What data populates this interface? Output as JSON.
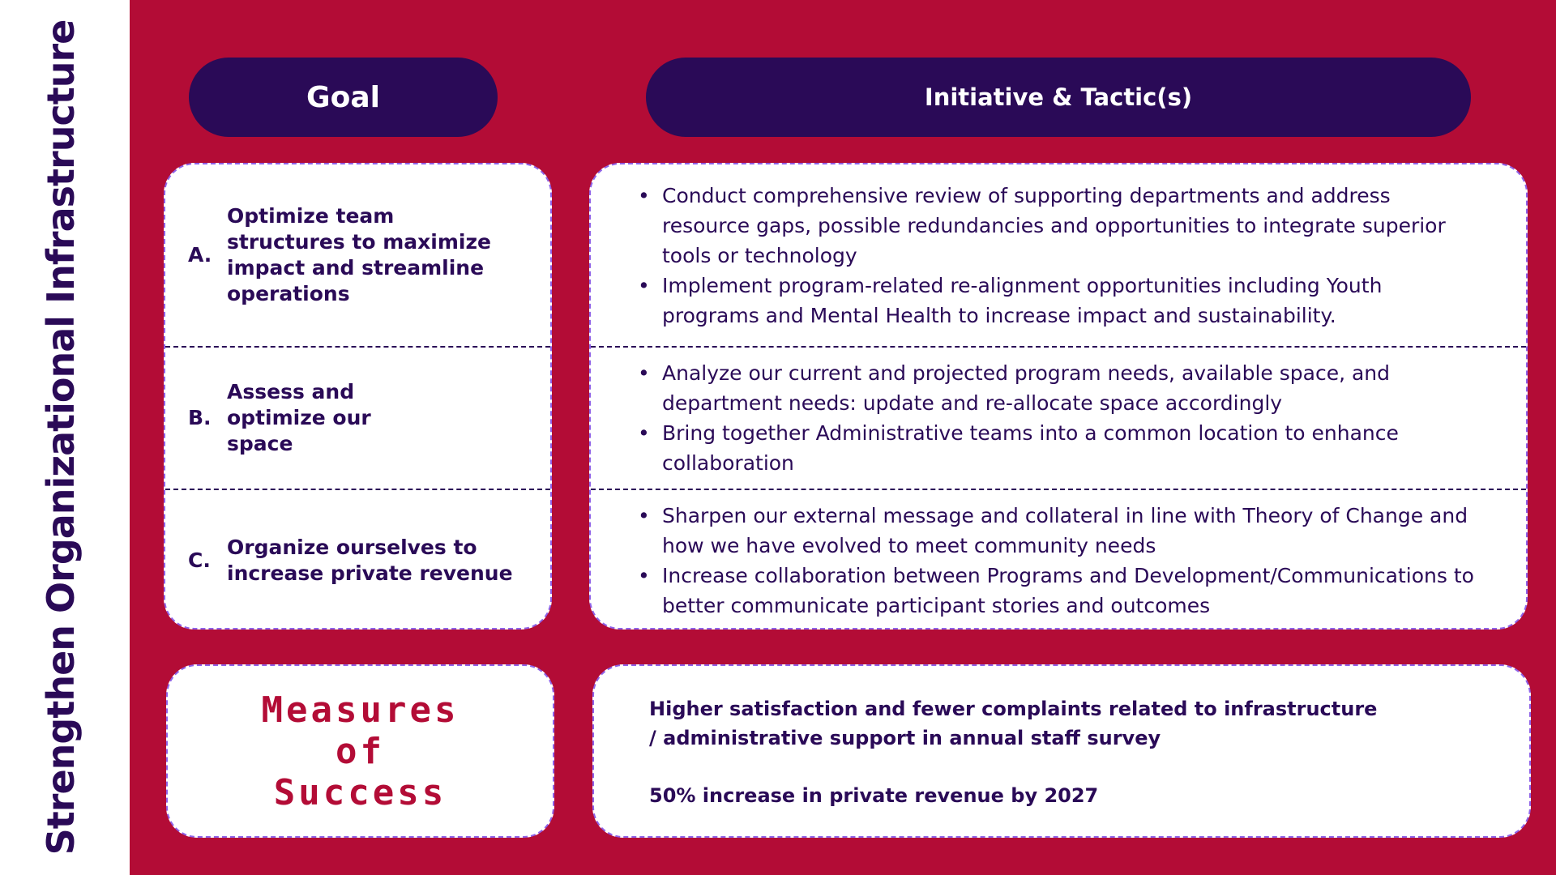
{
  "side_title": "Strengthen Organizational Infrastructure",
  "headers": {
    "goal": "Goal",
    "initiative": "Initiative & Tactic(s)"
  },
  "goals": [
    {
      "letter": "A.",
      "text": "Optimize team structures to maximize impact and streamline operations"
    },
    {
      "letter": "B.",
      "text": "Assess and optimize our space"
    },
    {
      "letter": "C.",
      "text": "Organize ourselves to increase private revenue"
    }
  ],
  "initiatives": [
    [
      "Conduct comprehensive review of supporting departments and address resource gaps, possible redundancies and opportunities to integrate superior tools or technology",
      "Implement program-related re-alignment opportunities including Youth programs and Mental Health to increase impact and sustainability."
    ],
    [
      "Analyze our current and projected program needs, available space, and department needs: update and re-allocate space accordingly",
      "Bring together Administrative teams into a common location to enhance collaboration"
    ],
    [
      "Sharpen our external message and collateral in line with Theory of Change and how we have evolved to meet community needs",
      "Increase collaboration between Programs and Development/Communications to better communicate participant stories and outcomes"
    ]
  ],
  "measures": {
    "title_lines": [
      "Measures",
      "of",
      "Success"
    ],
    "items": [
      "Higher satisfaction and fewer complaints related to infrastructure / administrative support in annual staff survey",
      "50% increase in private revenue by 2027"
    ]
  },
  "colors": {
    "background": "#b30c36",
    "navy": "#2a0a57",
    "border": "#8f62e8",
    "white": "#ffffff"
  }
}
